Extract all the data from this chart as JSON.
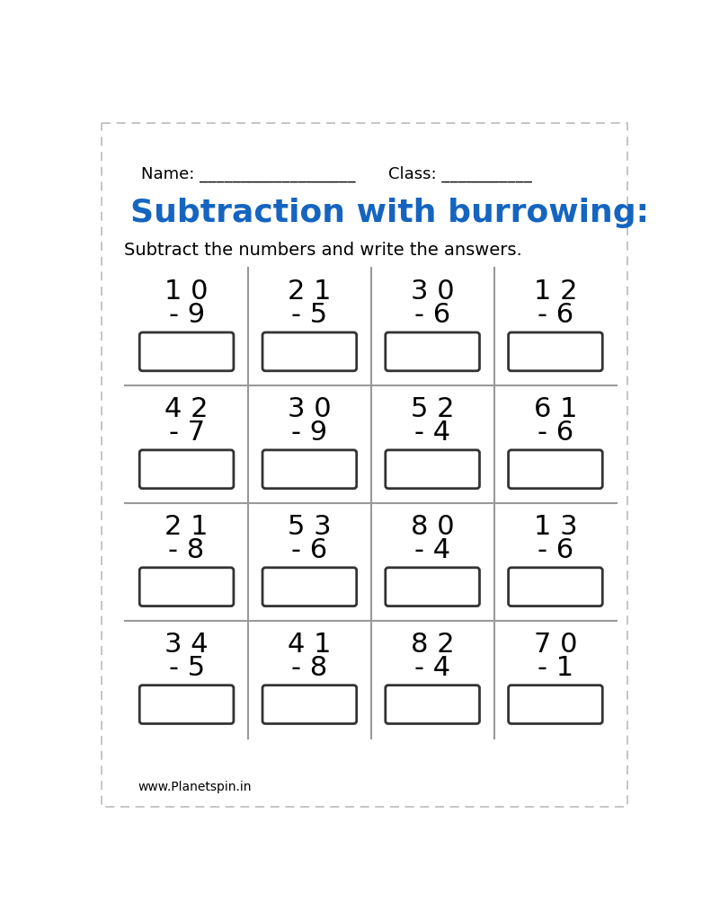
{
  "title": "Subtraction with burrowing:",
  "subtitle": "Subtract the numbers and write the answers.",
  "name_label": "Name: ___________________",
  "class_label": "Class: ___________",
  "footer": "www.Planetspin.in",
  "title_color": "#1565C0",
  "problems": [
    [
      "1 0",
      "9"
    ],
    [
      "2 1",
      "5"
    ],
    [
      "3 0",
      "6"
    ],
    [
      "1 2",
      "6"
    ],
    [
      "4 2",
      "7"
    ],
    [
      "3 0",
      "9"
    ],
    [
      "5 2",
      "4"
    ],
    [
      "6 1",
      "6"
    ],
    [
      "2 1",
      "8"
    ],
    [
      "5 3",
      "6"
    ],
    [
      "8 0",
      "4"
    ],
    [
      "1 3",
      "6"
    ],
    [
      "3 4",
      "5"
    ],
    [
      "4 1",
      "8"
    ],
    [
      "8 2",
      "4"
    ],
    [
      "7 0",
      "1"
    ]
  ],
  "page_bg": "#ffffff",
  "border_color": "#bbbbbb",
  "line_color": "#999999",
  "box_edge_color": "#333333",
  "text_color": "#000000",
  "title_fontsize": 26,
  "subtitle_fontsize": 14,
  "problem_fontsize": 22,
  "name_fontsize": 13
}
